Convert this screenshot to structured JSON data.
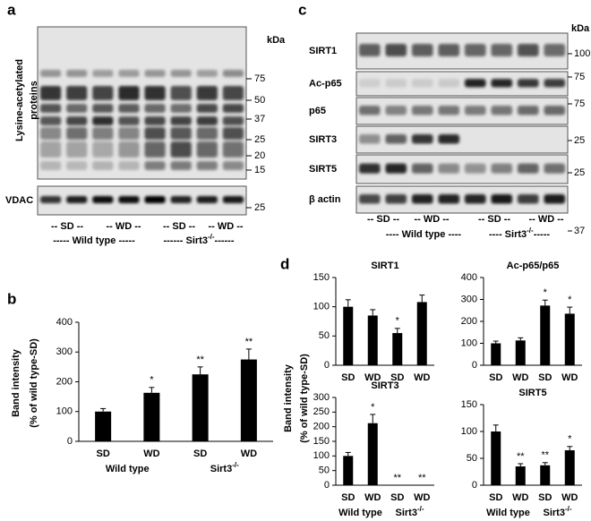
{
  "panel_a": {
    "label": "a",
    "y_label": [
      "Lysine-acetylated",
      "proteins"
    ],
    "unit": "kDa",
    "markers": [
      "75",
      "50",
      "37",
      "25",
      "20",
      "15"
    ],
    "loading_label": "VDAC",
    "loading_marker": "25",
    "lanes": [
      "-- SD --",
      "-- WD --",
      "-- SD --",
      "-- WD --"
    ],
    "groups": [
      {
        "text": "----- Wild type -----"
      },
      {
        "text": "------ Sirt3",
        "sup": "-/-",
        "tail": "------"
      }
    ]
  },
  "panel_c": {
    "label": "c",
    "unit": "kDa",
    "rows": [
      {
        "name": "SIRT1",
        "marker": "100"
      },
      {
        "name": "Ac-p65",
        "marker": "75"
      },
      {
        "name": "p65",
        "marker": "75"
      },
      {
        "name": "SIRT3",
        "marker": "25"
      },
      {
        "name": "SIRT5",
        "marker": "25"
      },
      {
        "name": "β actin",
        "marker": "37"
      }
    ],
    "lanes": [
      "-- SD --",
      "-- WD --",
      "-- SD --",
      "-- WD --"
    ],
    "groups": [
      {
        "text": "---- Wild type ----"
      },
      {
        "text": "---- Sirt3",
        "sup": "-/-",
        "tail": "-----"
      }
    ]
  },
  "panel_b": {
    "label": "b"
  },
  "panel_d": {
    "label": "d",
    "y_label": [
      "Band intensity",
      "(% of wild type-SD)"
    ]
  },
  "chart_data": [
    {
      "type": "bar",
      "y_label": [
        "Band intensity",
        "(% of wild type-SD)"
      ],
      "categories": [
        "SD",
        "WD",
        "SD",
        "WD"
      ],
      "groups": [
        {
          "text": "Wild type"
        },
        {
          "text": "Sirt3",
          "sup": "-/-"
        }
      ],
      "values": [
        100,
        163,
        225,
        275
      ],
      "errors": [
        10,
        18,
        25,
        35
      ],
      "annotations": [
        null,
        "*",
        "**",
        "**"
      ],
      "color": "#000000",
      "ylim": [
        0,
        400
      ],
      "yticks": [
        0,
        100,
        200,
        300,
        400
      ]
    },
    {
      "type": "bar",
      "title": "SIRT1",
      "categories": [
        "SD",
        "WD",
        "SD",
        "WD"
      ],
      "values": [
        100,
        85,
        55,
        108
      ],
      "errors": [
        12,
        10,
        8,
        12
      ],
      "annotations": [
        null,
        null,
        "*",
        null
      ],
      "color": "#000000",
      "ylim": [
        0,
        150
      ],
      "yticks": [
        0,
        50,
        100,
        150
      ]
    },
    {
      "type": "bar",
      "title": "Ac-p65/p65",
      "categories": [
        "SD",
        "WD",
        "SD",
        "WD"
      ],
      "values": [
        100,
        113,
        272,
        235
      ],
      "errors": [
        10,
        12,
        25,
        30
      ],
      "annotations": [
        null,
        null,
        "*",
        "*"
      ],
      "color": "#000000",
      "ylim": [
        0,
        400
      ],
      "yticks": [
        0,
        100,
        200,
        300,
        400
      ]
    },
    {
      "type": "bar",
      "title": "SIRT3",
      "categories": [
        "SD",
        "WD",
        "SD",
        "WD"
      ],
      "groups": [
        {
          "text": "Wild type"
        },
        {
          "text": "Sirt3",
          "sup": "-/-"
        }
      ],
      "values": [
        100,
        212,
        0,
        0
      ],
      "errors": [
        12,
        30,
        0,
        0
      ],
      "annotations": [
        null,
        "*",
        "**",
        "**"
      ],
      "color": "#000000",
      "ylim": [
        0,
        300
      ],
      "yticks": [
        0,
        50,
        100,
        150,
        200,
        250,
        300
      ]
    },
    {
      "type": "bar",
      "title": "SIRT5",
      "categories": [
        "SD",
        "WD",
        "SD",
        "WD"
      ],
      "groups": [
        {
          "text": "Wild type"
        },
        {
          "text": "Sirt3",
          "sup": "-/-"
        }
      ],
      "values": [
        100,
        35,
        37,
        65
      ],
      "errors": [
        12,
        5,
        5,
        7
      ],
      "annotations": [
        null,
        "**",
        "**",
        "*"
      ],
      "color": "#000000",
      "ylim": [
        0,
        150
      ],
      "yticks": [
        0,
        50,
        100,
        150
      ]
    }
  ]
}
